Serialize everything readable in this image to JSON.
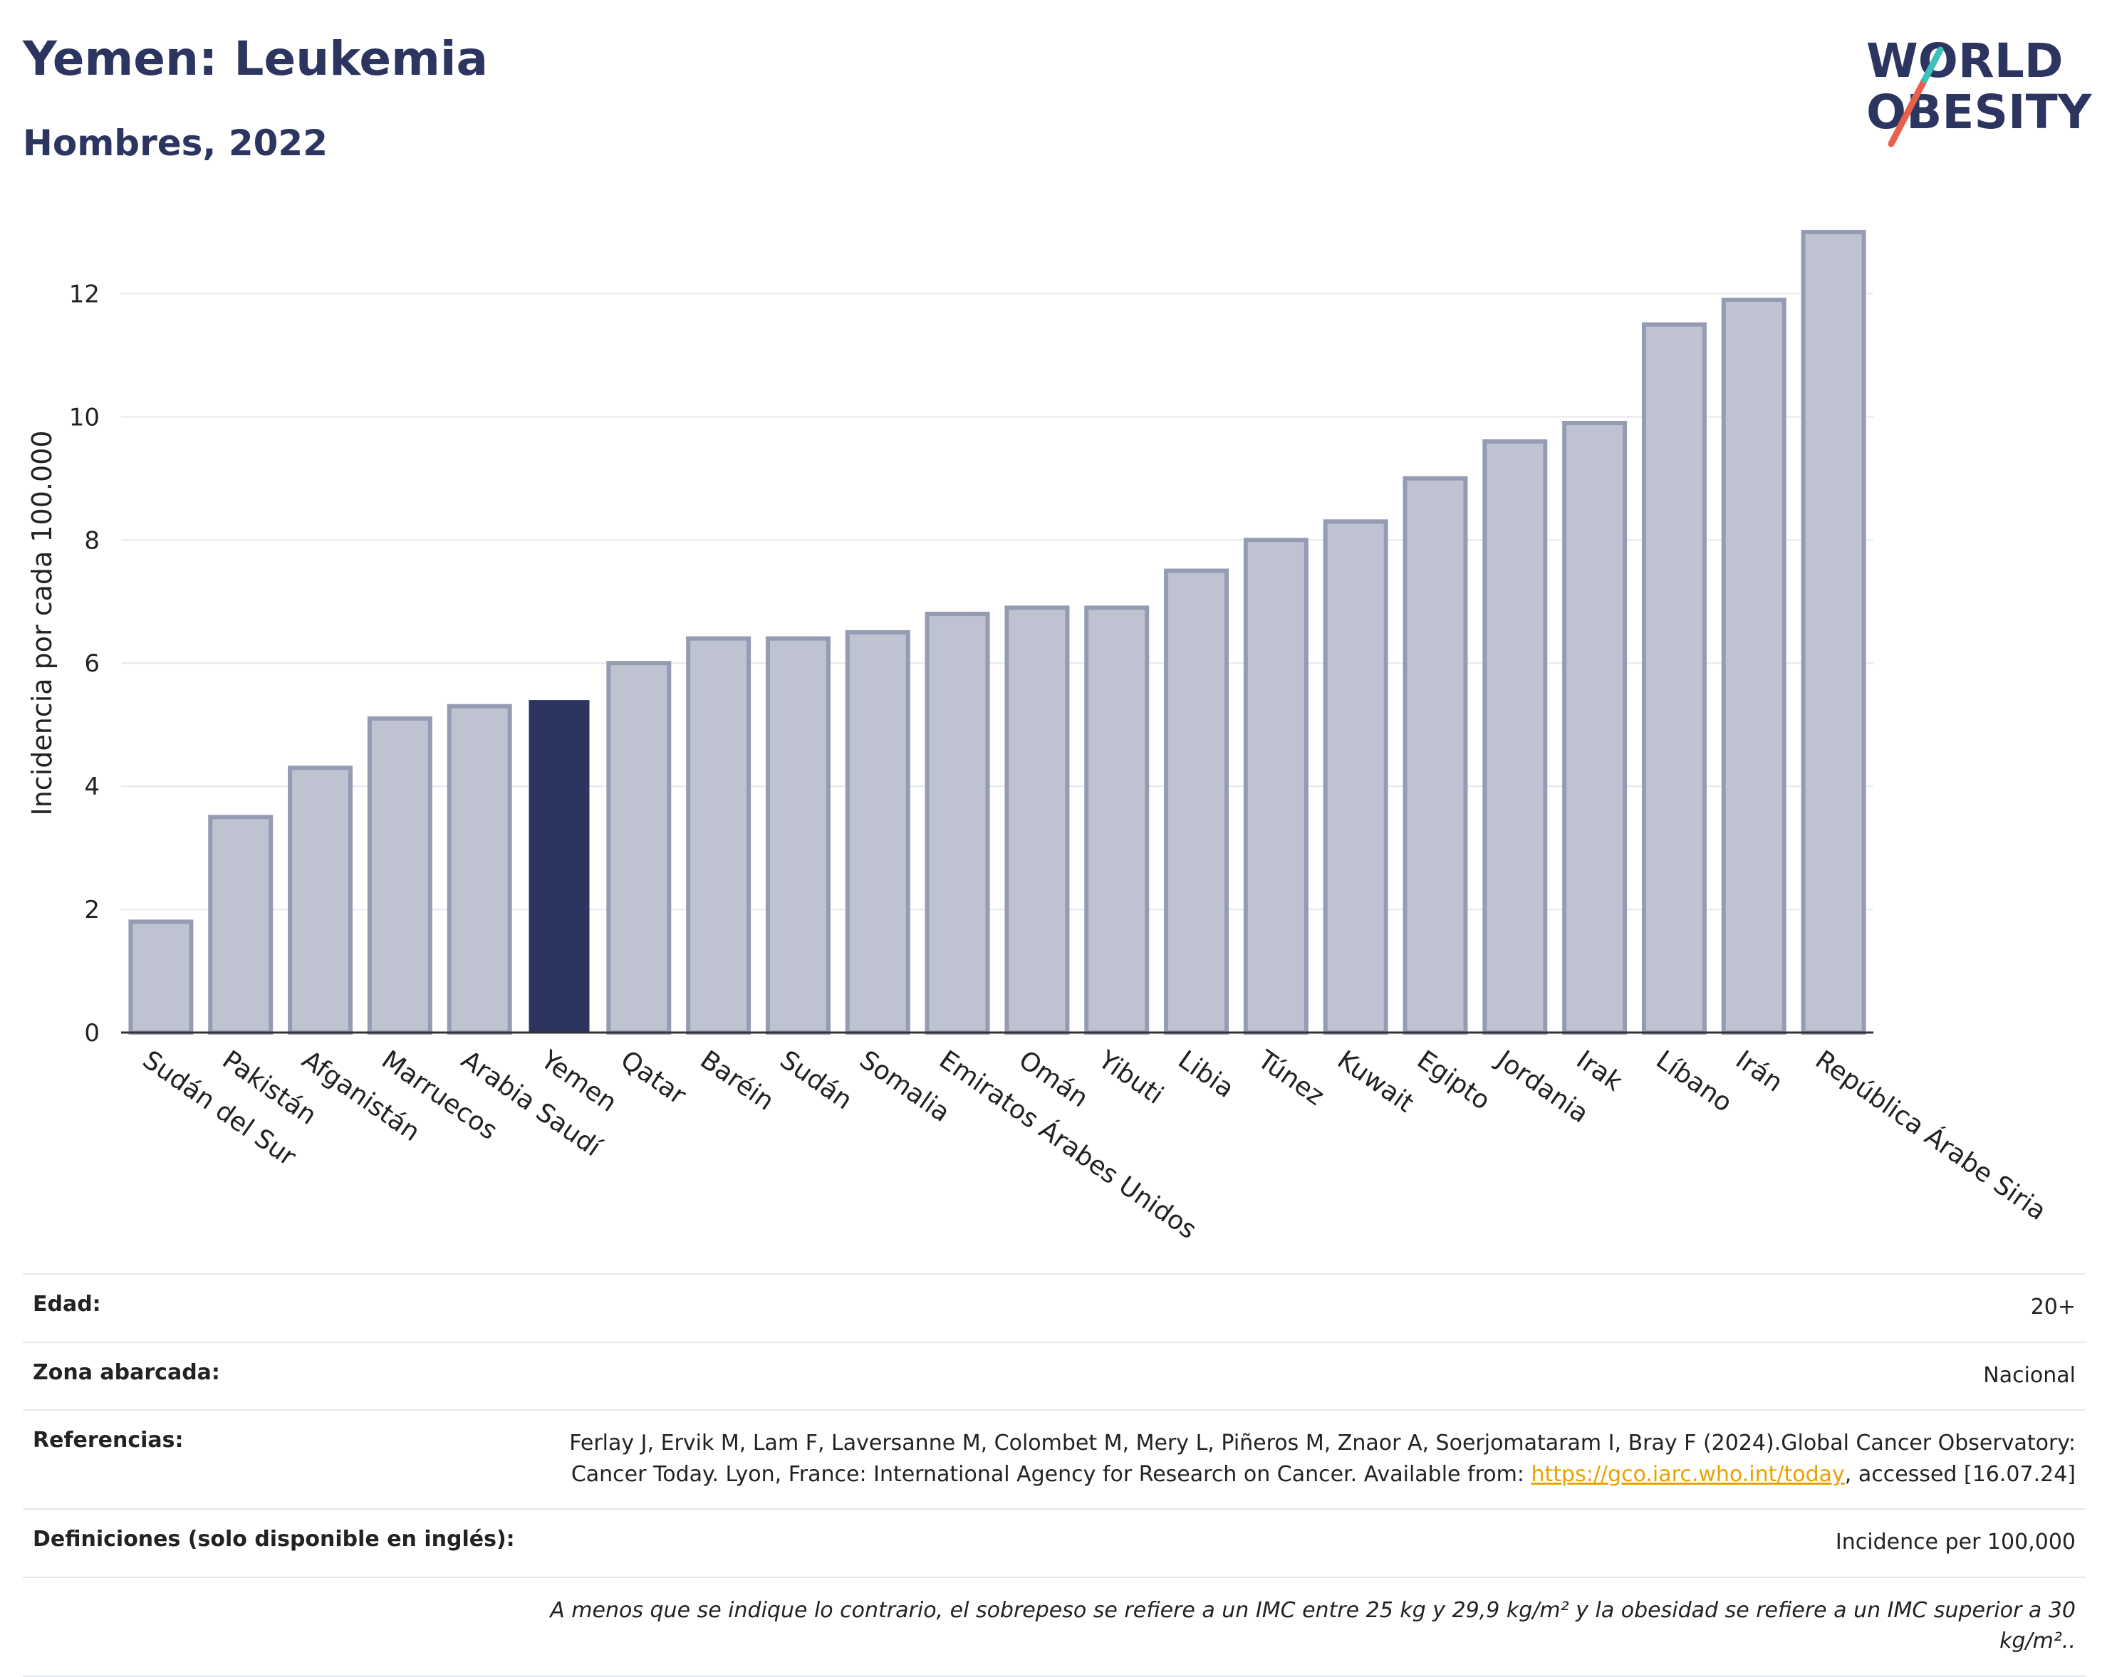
{
  "header": {
    "title": "Yemen: Leukemia",
    "subtitle": "Hombres, 2022"
  },
  "logo": {
    "line1": "WORLD",
    "line2": "OBESITY",
    "colors": {
      "text": "#2b3560",
      "slash_red": "#e8604c",
      "slash_teal": "#3cc0b8"
    }
  },
  "chart_data": {
    "type": "bar",
    "title": "",
    "xlabel": "",
    "ylabel": "Incidencia por cada 100.000",
    "ylim": [
      0,
      13.3
    ],
    "yticks": [
      0,
      2,
      4,
      6,
      8,
      10,
      12
    ],
    "grid": true,
    "highlight": "Yemen",
    "colors": {
      "bar": "#bfc3d1",
      "bar_border": "#959bb3",
      "highlight": "#2b3560"
    },
    "categories": [
      "Sudán del Sur",
      "Pakistán",
      "Afganistán",
      "Marruecos",
      "Arabia Saudí",
      "Yemen",
      "Qatar",
      "Baréin",
      "Sudán",
      "Somalia",
      "Emiratos Árabes Unidos",
      "Omán",
      "Yibuti",
      "Libia",
      "Túnez",
      "Kuwait",
      "Egipto",
      "Jordania",
      "Irak",
      "Líbano",
      "Irán",
      "República Árabe Siria"
    ],
    "values": [
      1.8,
      3.5,
      4.3,
      5.1,
      5.3,
      5.4,
      6.0,
      6.4,
      6.4,
      6.5,
      6.8,
      6.9,
      6.9,
      7.5,
      8.0,
      8.3,
      9.0,
      9.6,
      9.9,
      11.5,
      11.9,
      13.0
    ]
  },
  "info": {
    "age_label": "Edad:",
    "age_value": "20+",
    "area_label": "Zona abarcada:",
    "area_value": "Nacional",
    "ref_label": "Referencias:",
    "ref_text1": "Ferlay J, Ervik M, Lam F, Laversanne M, Colombet M, Mery L, Piñeros M, Znaor A, Soerjomataram I, Bray F (2024).Global Cancer Observatory: Cancer Today. Lyon, France: International Agency for Research on Cancer. Available from: ",
    "ref_link": "https://gco.iarc.who.int/today",
    "ref_text2": ", accessed [16.07.24]",
    "def_label": "Definiciones (solo disponible en inglés):",
    "def_value": "Incidence per 100,000",
    "note": "A menos que se indique lo contrario, el sobrepeso se refiere a un IMC entre 25 kg y 29,9 kg/m² y la obesidad se refiere a un IMC superior a 30 kg/m²..",
    "link_color": "#e8a200"
  }
}
